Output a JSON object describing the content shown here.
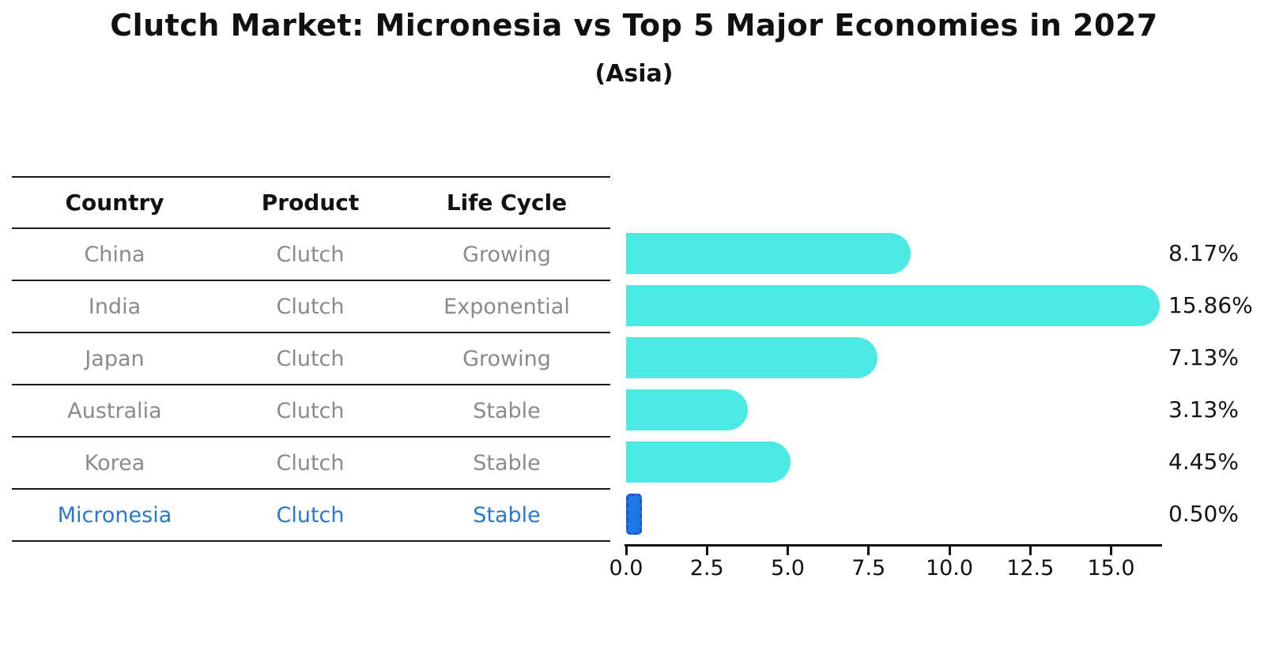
{
  "header": {
    "title": "Clutch Market: Micronesia vs Top 5 Major Economies in 2027",
    "subtitle": "(Asia)"
  },
  "table": {
    "headers": [
      "Country",
      "Product",
      "Life Cycle"
    ],
    "rows": [
      {
        "country": "China",
        "product": "Clutch",
        "life_cycle": "Growing"
      },
      {
        "country": "India",
        "product": "Clutch",
        "life_cycle": "Exponential"
      },
      {
        "country": "Japan",
        "product": "Clutch",
        "life_cycle": "Growing"
      },
      {
        "country": "Australia",
        "product": "Clutch",
        "life_cycle": "Stable"
      },
      {
        "country": "Korea",
        "product": "Clutch",
        "life_cycle": "Stable"
      },
      {
        "country": "Micronesia",
        "product": "Clutch",
        "life_cycle": "Stable"
      }
    ]
  },
  "chart_data": {
    "type": "bar",
    "orientation": "horizontal",
    "title": "Clutch Market: Micronesia vs Top 5 Major Economies in 2027",
    "subtitle": "(Asia)",
    "categories": [
      "China",
      "India",
      "Japan",
      "Australia",
      "Korea",
      "Micronesia"
    ],
    "values": [
      8.17,
      15.86,
      7.13,
      3.13,
      4.45,
      0.5
    ],
    "value_labels": [
      "8.17%",
      "15.86%",
      "7.13%",
      "3.13%",
      "4.45%",
      "0.50%"
    ],
    "x_ticks": [
      "0.0",
      "2.5",
      "5.0",
      "7.5",
      "10.0",
      "12.5",
      "15.0"
    ],
    "xlim": [
      0,
      16.5
    ],
    "grid": false,
    "legend": false,
    "highlight_category": "Micronesia",
    "colors": {
      "bar": "#4CE9E4",
      "highlight_bar": "#1E78E8",
      "highlight_border": "#1857cc",
      "highlight_text": "#2878CE",
      "row_text": "#8a8a8a",
      "header_text": "#111111",
      "value_text": "#151515",
      "axis": "#111111"
    }
  }
}
